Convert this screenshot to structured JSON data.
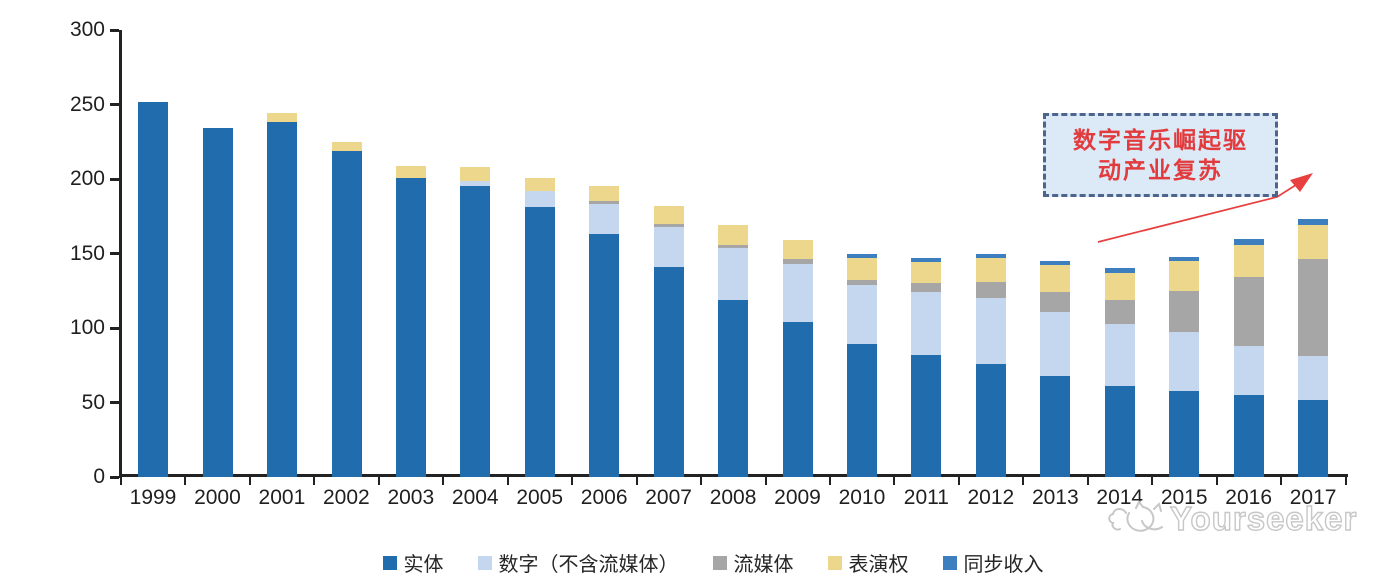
{
  "chart_data": {
    "type": "bar",
    "stacked": true,
    "title": "",
    "xlabel": "",
    "ylabel": "",
    "grid": false,
    "legend_position": "bottom",
    "categories": [
      "1999",
      "2000",
      "2001",
      "2002",
      "2003",
      "2004",
      "2005",
      "2006",
      "2007",
      "2008",
      "2009",
      "2010",
      "2011",
      "2012",
      "2013",
      "2014",
      "2015",
      "2016",
      "2017"
    ],
    "series": [
      {
        "name": "实体",
        "color": "#206CAC",
        "values": [
          252,
          234,
          238,
          219,
          201,
          195,
          181,
          163,
          141,
          119,
          104,
          89,
          82,
          76,
          68,
          61,
          58,
          55,
          52
        ]
      },
      {
        "name": "数字（不含流媒体）",
        "color": "#C4D7EE",
        "values": [
          0,
          0,
          0,
          0,
          0,
          4,
          11,
          20,
          27,
          35,
          39,
          40,
          42,
          44,
          43,
          42,
          39,
          33,
          29
        ]
      },
      {
        "name": "流媒体",
        "color": "#A6A6A6",
        "values": [
          0,
          0,
          0,
          0,
          0,
          0,
          0,
          2,
          2,
          2,
          3,
          3,
          6,
          11,
          13,
          16,
          28,
          46,
          65
        ]
      },
      {
        "name": "表演权",
        "color": "#ECD78C",
        "values": [
          0,
          0,
          6,
          6,
          8,
          9,
          9,
          10,
          12,
          13,
          13,
          15,
          14,
          16,
          18,
          18,
          20,
          22,
          23
        ]
      },
      {
        "name": "同步收入",
        "color": "#3C7EBE",
        "values": [
          0,
          0,
          0,
          0,
          0,
          0,
          0,
          0,
          0,
          0,
          0,
          3,
          3,
          3,
          3,
          3,
          3,
          4,
          4
        ]
      }
    ],
    "y_axis": {
      "min": 0,
      "max": 300,
      "step": 50,
      "tick_labels": [
        "300",
        "250",
        "200",
        "150",
        "100",
        "50",
        "0"
      ]
    }
  },
  "annotation": {
    "line1": "数字音乐崛起驱",
    "line2": "动产业复苏",
    "text_color": "#E23B3D",
    "box_fill": "#DCE9F7",
    "border_color": "#4D648D",
    "arrow_color": "#E8403E"
  },
  "watermark": {
    "text": "Yourseeker",
    "logo": "cat-outline-logo",
    "color": "#C7C7C7"
  },
  "colors": {
    "axis": "#222222",
    "background": "#FFFFFF"
  }
}
